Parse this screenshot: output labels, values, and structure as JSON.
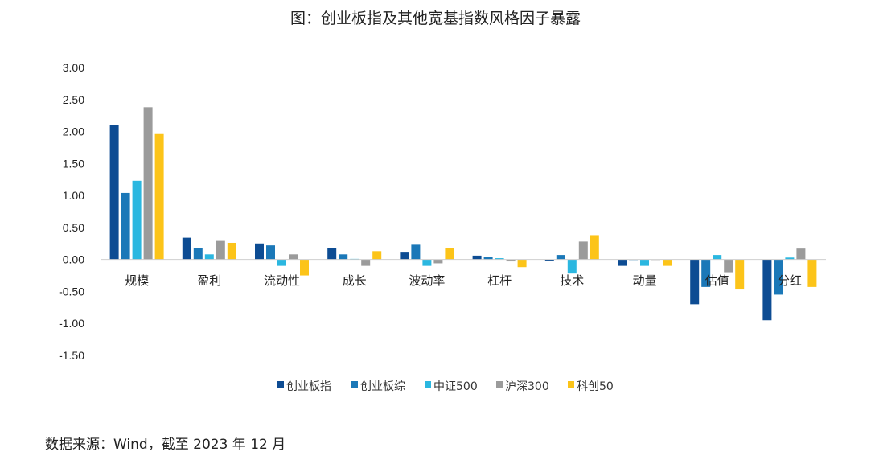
{
  "chart_data": {
    "type": "bar",
    "title": "图：创业板指及其他宽基指数风格因子暴露",
    "xlabel": "",
    "ylabel": "",
    "ylim": [
      -1.5,
      3.0
    ],
    "yticks": [
      "3.00",
      "2.50",
      "2.00",
      "1.50",
      "1.00",
      "0.50",
      "0.00",
      "-0.50",
      "-1.00",
      "-1.50"
    ],
    "ytick_values": [
      3.0,
      2.5,
      2.0,
      1.5,
      1.0,
      0.5,
      0.0,
      -0.5,
      -1.0,
      -1.5
    ],
    "grid": false,
    "legend_position": "bottom",
    "categories": [
      "规模",
      "盈利",
      "流动性",
      "成长",
      "波动率",
      "杠杆",
      "技术",
      "动量",
      "估值",
      "分红"
    ],
    "series": [
      {
        "name": "创业板指",
        "color": "#0d4c93",
        "values": [
          2.1,
          0.34,
          0.25,
          0.18,
          0.12,
          0.06,
          -0.02,
          -0.1,
          -0.7,
          -0.95
        ]
      },
      {
        "name": "创业板综",
        "color": "#1b78b8",
        "values": [
          1.04,
          0.18,
          0.22,
          0.08,
          0.23,
          0.04,
          0.07,
          0.0,
          -0.43,
          -0.55
        ]
      },
      {
        "name": "中证500",
        "color": "#2bb7e0",
        "values": [
          1.23,
          0.08,
          -0.1,
          0.01,
          -0.1,
          0.02,
          -0.22,
          -0.1,
          0.07,
          0.03
        ]
      },
      {
        "name": "沪深300",
        "color": "#9b9b9b",
        "values": [
          2.38,
          0.29,
          0.08,
          -0.1,
          -0.06,
          -0.03,
          0.28,
          0.0,
          -0.2,
          0.17
        ]
      },
      {
        "name": "科创50",
        "color": "#fcc419",
        "values": [
          1.96,
          0.26,
          -0.25,
          0.13,
          0.18,
          -0.12,
          0.38,
          -0.1,
          -0.47,
          -0.43
        ]
      }
    ]
  },
  "footer": {
    "source_text": "数据来源：Wind，截至 2023 年 12 月"
  }
}
